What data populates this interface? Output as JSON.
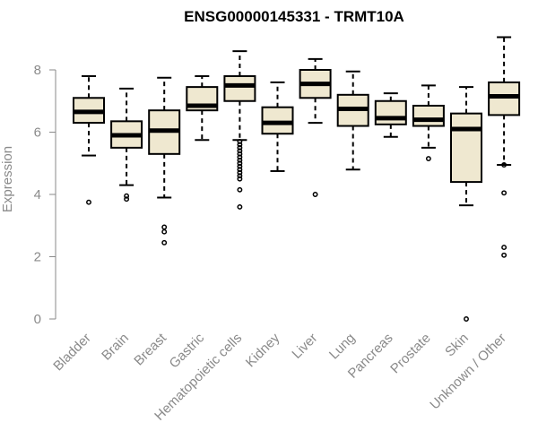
{
  "chart_data": {
    "type": "boxplot",
    "title": "ENSG00000145331 - TRMT10A",
    "xlabel": "",
    "ylabel": "Expression",
    "ylim": [
      0,
      9.1
    ],
    "yticks": [
      0,
      2,
      4,
      6,
      8
    ],
    "box_fill": "#efe8d0",
    "categories": [
      "Bladder",
      "Brain",
      "Breast",
      "Gastric",
      "Hematopoietic cells",
      "Kidney",
      "Liver",
      "Lung",
      "Pancreas",
      "Prostate",
      "Skin",
      "Unknown / Other"
    ],
    "boxes": [
      {
        "whisker_low": 5.25,
        "q1": 6.3,
        "median": 6.65,
        "q3": 7.1,
        "whisker_high": 7.8,
        "outliers": [
          3.75
        ]
      },
      {
        "whisker_low": 4.3,
        "q1": 5.5,
        "median": 5.9,
        "q3": 6.35,
        "whisker_high": 7.4,
        "outliers": [
          3.95,
          3.85
        ]
      },
      {
        "whisker_low": 3.9,
        "q1": 5.3,
        "median": 6.05,
        "q3": 6.7,
        "whisker_high": 7.75,
        "outliers": [
          2.95,
          2.8,
          2.45
        ]
      },
      {
        "whisker_low": 5.75,
        "q1": 6.7,
        "median": 6.85,
        "q3": 7.45,
        "whisker_high": 7.8,
        "outliers": []
      },
      {
        "whisker_low": 5.75,
        "q1": 7.0,
        "median": 7.5,
        "q3": 7.8,
        "whisker_high": 8.6,
        "outliers": [
          5.7,
          5.6,
          5.5,
          5.4,
          5.3,
          5.2,
          5.1,
          5.0,
          4.9,
          4.8,
          4.7,
          4.6,
          4.5,
          4.15,
          3.6
        ]
      },
      {
        "whisker_low": 4.75,
        "q1": 5.95,
        "median": 6.3,
        "q3": 6.8,
        "whisker_high": 7.6,
        "outliers": []
      },
      {
        "whisker_low": 6.3,
        "q1": 7.1,
        "median": 7.55,
        "q3": 8.0,
        "whisker_high": 8.35,
        "outliers": [
          4.0
        ]
      },
      {
        "whisker_low": 4.8,
        "q1": 6.2,
        "median": 6.75,
        "q3": 7.2,
        "whisker_high": 7.95,
        "outliers": []
      },
      {
        "whisker_low": 5.85,
        "q1": 6.25,
        "median": 6.45,
        "q3": 7.0,
        "whisker_high": 7.25,
        "outliers": []
      },
      {
        "whisker_low": 5.5,
        "q1": 6.2,
        "median": 6.4,
        "q3": 6.85,
        "whisker_high": 7.5,
        "outliers": [
          5.15
        ]
      },
      {
        "whisker_low": 3.65,
        "q1": 4.4,
        "median": 6.1,
        "q3": 6.6,
        "whisker_high": 7.45,
        "outliers": [
          0.0
        ]
      },
      {
        "whisker_low": 4.95,
        "q1": 6.55,
        "median": 7.15,
        "q3": 7.6,
        "whisker_high": 9.05,
        "outliers": [
          4.95,
          4.05,
          2.3,
          2.05
        ]
      }
    ]
  }
}
